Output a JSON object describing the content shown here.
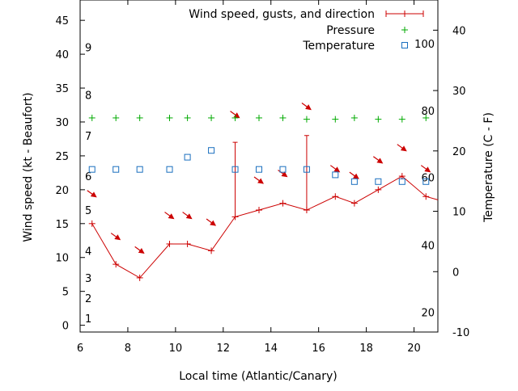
{
  "chart_data": {
    "type": "line",
    "title": "",
    "xlabel": "Local time (Atlantic/Canary)",
    "ylabel_left": "Wind speed (kt - Beaufort)",
    "ylabel_right": "Temperature (C - F)",
    "x_axis": {
      "min": 6,
      "max": 21,
      "ticks": [
        6,
        8,
        10,
        12,
        14,
        16,
        18,
        20
      ]
    },
    "y_left": {
      "min": -1,
      "max": 48,
      "ticks": [
        0,
        5,
        10,
        15,
        20,
        25,
        30,
        35,
        40,
        45
      ]
    },
    "y_right": {
      "min": -10,
      "max": 45,
      "ticks": [
        -10,
        0,
        10,
        20,
        30,
        40
      ]
    },
    "beaufort_labels": [
      {
        "label": "1",
        "kt": 1
      },
      {
        "label": "2",
        "kt": 4
      },
      {
        "label": "3",
        "kt": 7
      },
      {
        "label": "4",
        "kt": 11
      },
      {
        "label": "5",
        "kt": 17
      },
      {
        "label": "6",
        "kt": 22
      },
      {
        "label": "7",
        "kt": 28
      },
      {
        "label": "8",
        "kt": 34
      },
      {
        "label": "9",
        "kt": 41
      }
    ],
    "fahrenheit_labels": [
      {
        "label": "20",
        "c": -6.7
      },
      {
        "label": "40",
        "c": 4.4
      },
      {
        "label": "60",
        "c": 15.6
      },
      {
        "label": "80",
        "c": 26.7
      },
      {
        "label": "100",
        "c": 37.8
      }
    ],
    "legend": {
      "placement": "top-right",
      "entries": [
        {
          "label": "Wind speed, gusts, and direction",
          "color": "#cc0000",
          "style": "errorline"
        },
        {
          "label": "Pressure",
          "color": "#00aa00",
          "style": "plus"
        },
        {
          "label": "Temperature",
          "color": "#1a6fbf",
          "style": "square"
        }
      ]
    },
    "series": [
      {
        "name": "Wind speed, gusts, and direction",
        "color": "#cc0000",
        "x": [
          6.5,
          7.5,
          8.5,
          9.75,
          10.5,
          11.5,
          12.5,
          13.5,
          14.5,
          15.5,
          16.7,
          17.5,
          18.5,
          19.5,
          20.5,
          21
        ],
        "y": [
          15,
          9,
          7,
          12,
          12,
          11,
          16,
          17,
          18,
          17,
          19,
          18,
          20,
          22,
          19,
          18.5
        ],
        "gusts": [
          null,
          null,
          null,
          null,
          null,
          null,
          27,
          null,
          null,
          28,
          null,
          null,
          null,
          null,
          null,
          null
        ]
      },
      {
        "name": "Pressure",
        "color": "#00aa00",
        "x": [
          6.5,
          7.5,
          8.5,
          9.75,
          10.5,
          11.5,
          12.5,
          13.5,
          14.5,
          15.5,
          16.7,
          17.5,
          18.5,
          19.5,
          20.5
        ],
        "y": [
          30.6,
          30.6,
          30.6,
          30.6,
          30.6,
          30.6,
          30.6,
          30.6,
          30.6,
          30.4,
          30.4,
          30.6,
          30.4,
          30.4,
          30.6
        ]
      },
      {
        "name": "Temperature",
        "color": "#1a6fbf",
        "x": [
          6.5,
          7.5,
          8.5,
          9.75,
          10.5,
          11.5,
          12.5,
          13.5,
          14.5,
          15.5,
          16.7,
          17.5,
          18.5,
          19.5,
          20.5
        ],
        "y": [
          23,
          23,
          23,
          23,
          24.8,
          25.8,
          23,
          23,
          23,
          23,
          22.2,
          21.2,
          21.2,
          21.2,
          21.2
        ]
      }
    ],
    "wind_direction_arrows": [
      {
        "x": 6.5,
        "kt": 19.3
      },
      {
        "x": 7.5,
        "kt": 13.0
      },
      {
        "x": 8.5,
        "kt": 11.0
      },
      {
        "x": 9.75,
        "kt": 16.1
      },
      {
        "x": 10.5,
        "kt": 16.1
      },
      {
        "x": 11.5,
        "kt": 15.1
      },
      {
        "x": 12.5,
        "kt": 31.0
      },
      {
        "x": 13.5,
        "kt": 21.3
      },
      {
        "x": 14.5,
        "kt": 22.3
      },
      {
        "x": 15.5,
        "kt": 32.2
      },
      {
        "x": 16.7,
        "kt": 23.0
      },
      {
        "x": 17.5,
        "kt": 22.0
      },
      {
        "x": 18.5,
        "kt": 24.3
      },
      {
        "x": 19.5,
        "kt": 26.1
      },
      {
        "x": 20.5,
        "kt": 23.0
      }
    ],
    "grid": false
  }
}
